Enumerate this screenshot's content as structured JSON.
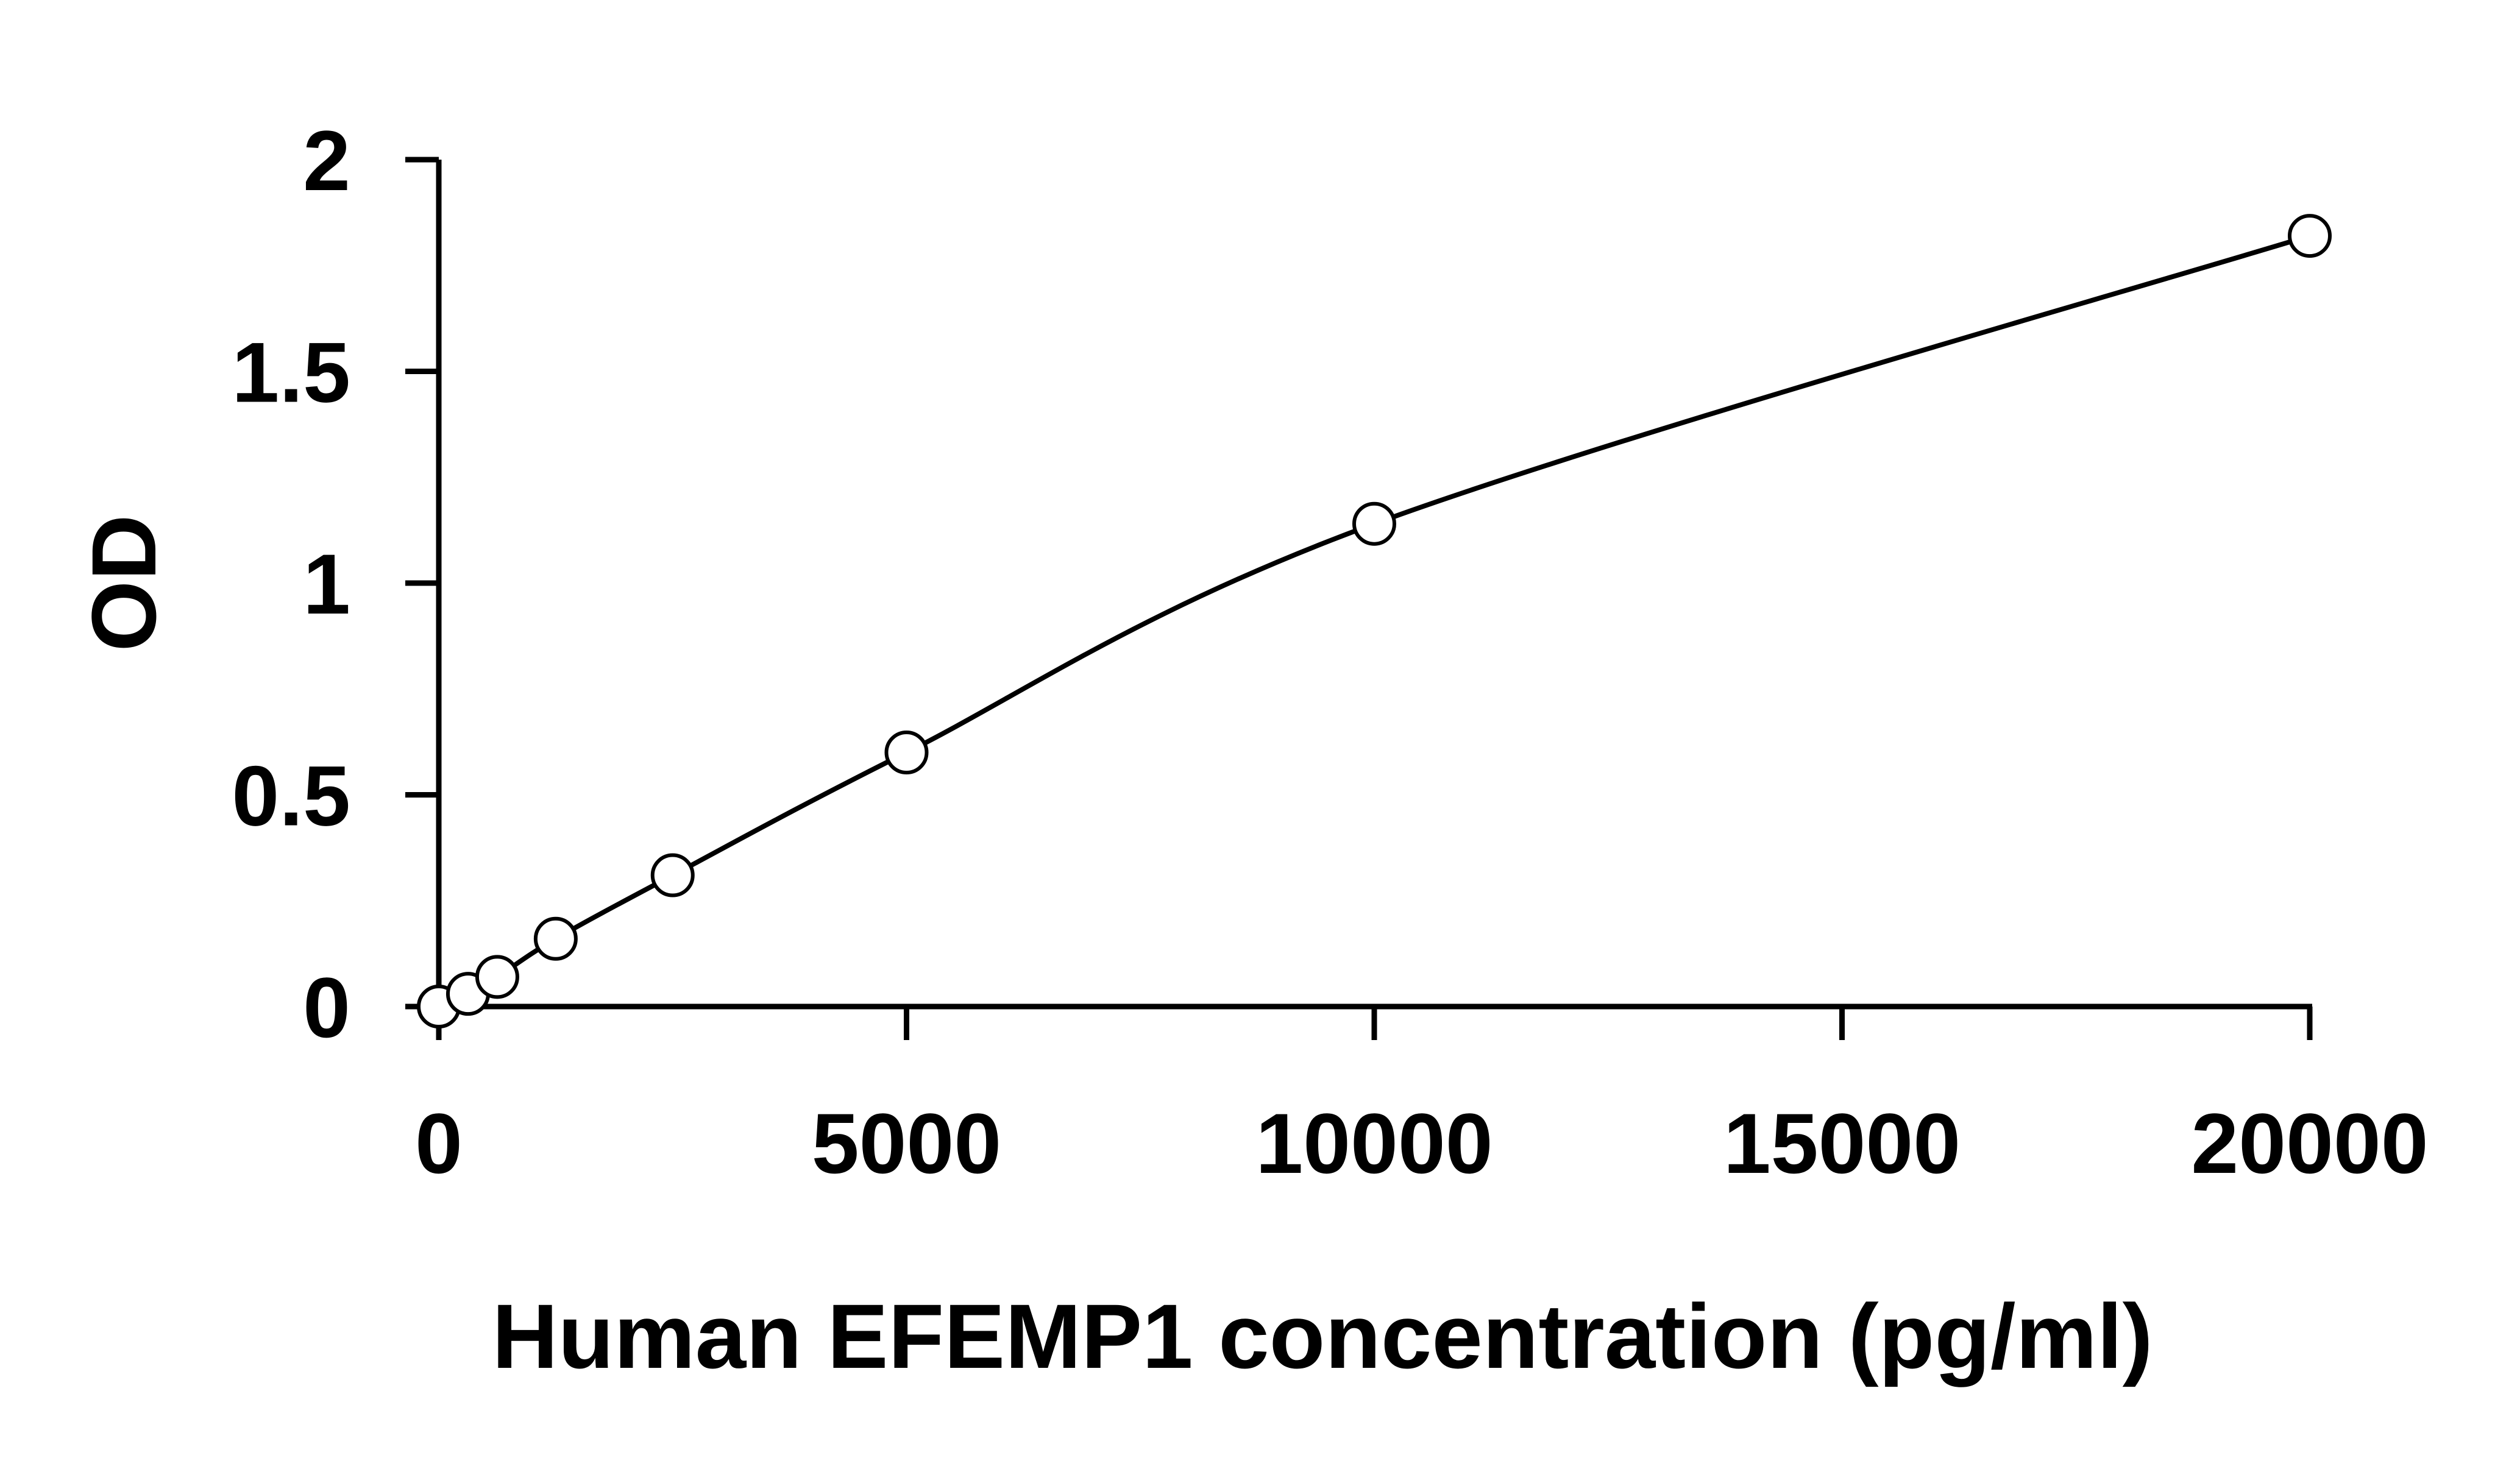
{
  "chart_data": {
    "type": "scatter",
    "title": "",
    "xlabel": "Human EFEMP1 concentration (pg/ml)",
    "ylabel": "OD",
    "xlim": [
      0,
      20000
    ],
    "ylim": [
      0,
      2
    ],
    "x_ticks": [
      0,
      5000,
      10000,
      15000,
      20000
    ],
    "y_ticks": [
      0,
      0.5,
      1,
      1.5,
      2
    ],
    "x_tick_labels": [
      "0",
      "5000",
      "10000",
      "15000",
      "20000"
    ],
    "y_tick_labels": [
      "0",
      "0.5",
      "1",
      "1.5",
      "2"
    ],
    "grid": false,
    "legend": "none",
    "series": [
      {
        "marker": "open-circle",
        "fit": "smooth-curve",
        "x": [
          0,
          312.5,
          625,
          1250,
          2500,
          5000,
          10000,
          20000
        ],
        "y": [
          0.0,
          0.03,
          0.07,
          0.16,
          0.31,
          0.6,
          1.14,
          1.82
        ]
      }
    ]
  }
}
